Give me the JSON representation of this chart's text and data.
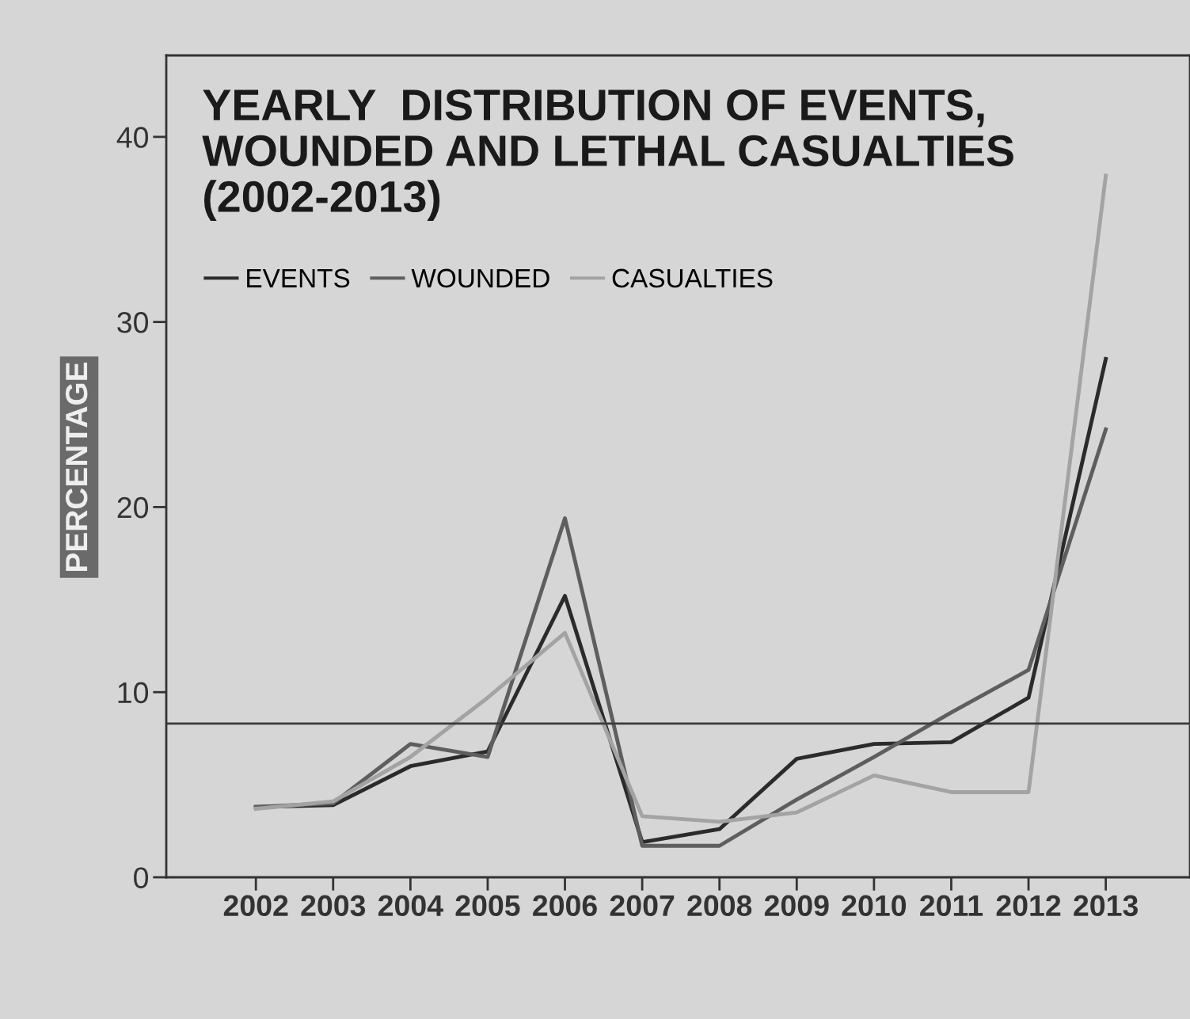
{
  "chart_data": {
    "type": "line",
    "title": "YEARLY  DISTRIBUTION OF EVENTS,\nWOUNDED AND LETHAL CASUALTIES\n(2002-2013)",
    "ylabel": "PERCENTAGE",
    "x": [
      2002,
      2003,
      2004,
      2005,
      2006,
      2007,
      2008,
      2009,
      2010,
      2011,
      2012,
      2013
    ],
    "series": [
      {
        "name": "EVENTS",
        "color": "#2b2b2b",
        "values": [
          3.8,
          3.9,
          6.0,
          6.8,
          15.2,
          1.9,
          2.6,
          6.4,
          7.2,
          7.3,
          9.7,
          28.0
        ]
      },
      {
        "name": "WOUNDED",
        "color": "#5e5e5e",
        "values": [
          3.8,
          4.0,
          7.2,
          6.5,
          19.4,
          1.7,
          1.7,
          4.2,
          6.5,
          8.9,
          11.2,
          24.2
        ]
      },
      {
        "name": "CASUALTIES",
        "color": "#a3a3a3",
        "values": [
          3.7,
          4.1,
          6.5,
          9.7,
          13.2,
          3.3,
          3.0,
          3.5,
          5.5,
          4.6,
          4.6,
          37.9
        ]
      }
    ],
    "xlim": [
      2000.84,
      2014.09
    ],
    "ylim": [
      0,
      44.4
    ],
    "xticks": [
      2002,
      2003,
      2004,
      2005,
      2006,
      2007,
      2008,
      2009,
      2010,
      2011,
      2012,
      2013
    ],
    "yticks": [
      0,
      10,
      20,
      30,
      40
    ],
    "ref_lines": [
      {
        "axis": "y",
        "value": 8.3,
        "color": "#3a3a3a"
      }
    ],
    "grid": false,
    "legend": "top left",
    "marker": "none",
    "line_style": "solid"
  }
}
